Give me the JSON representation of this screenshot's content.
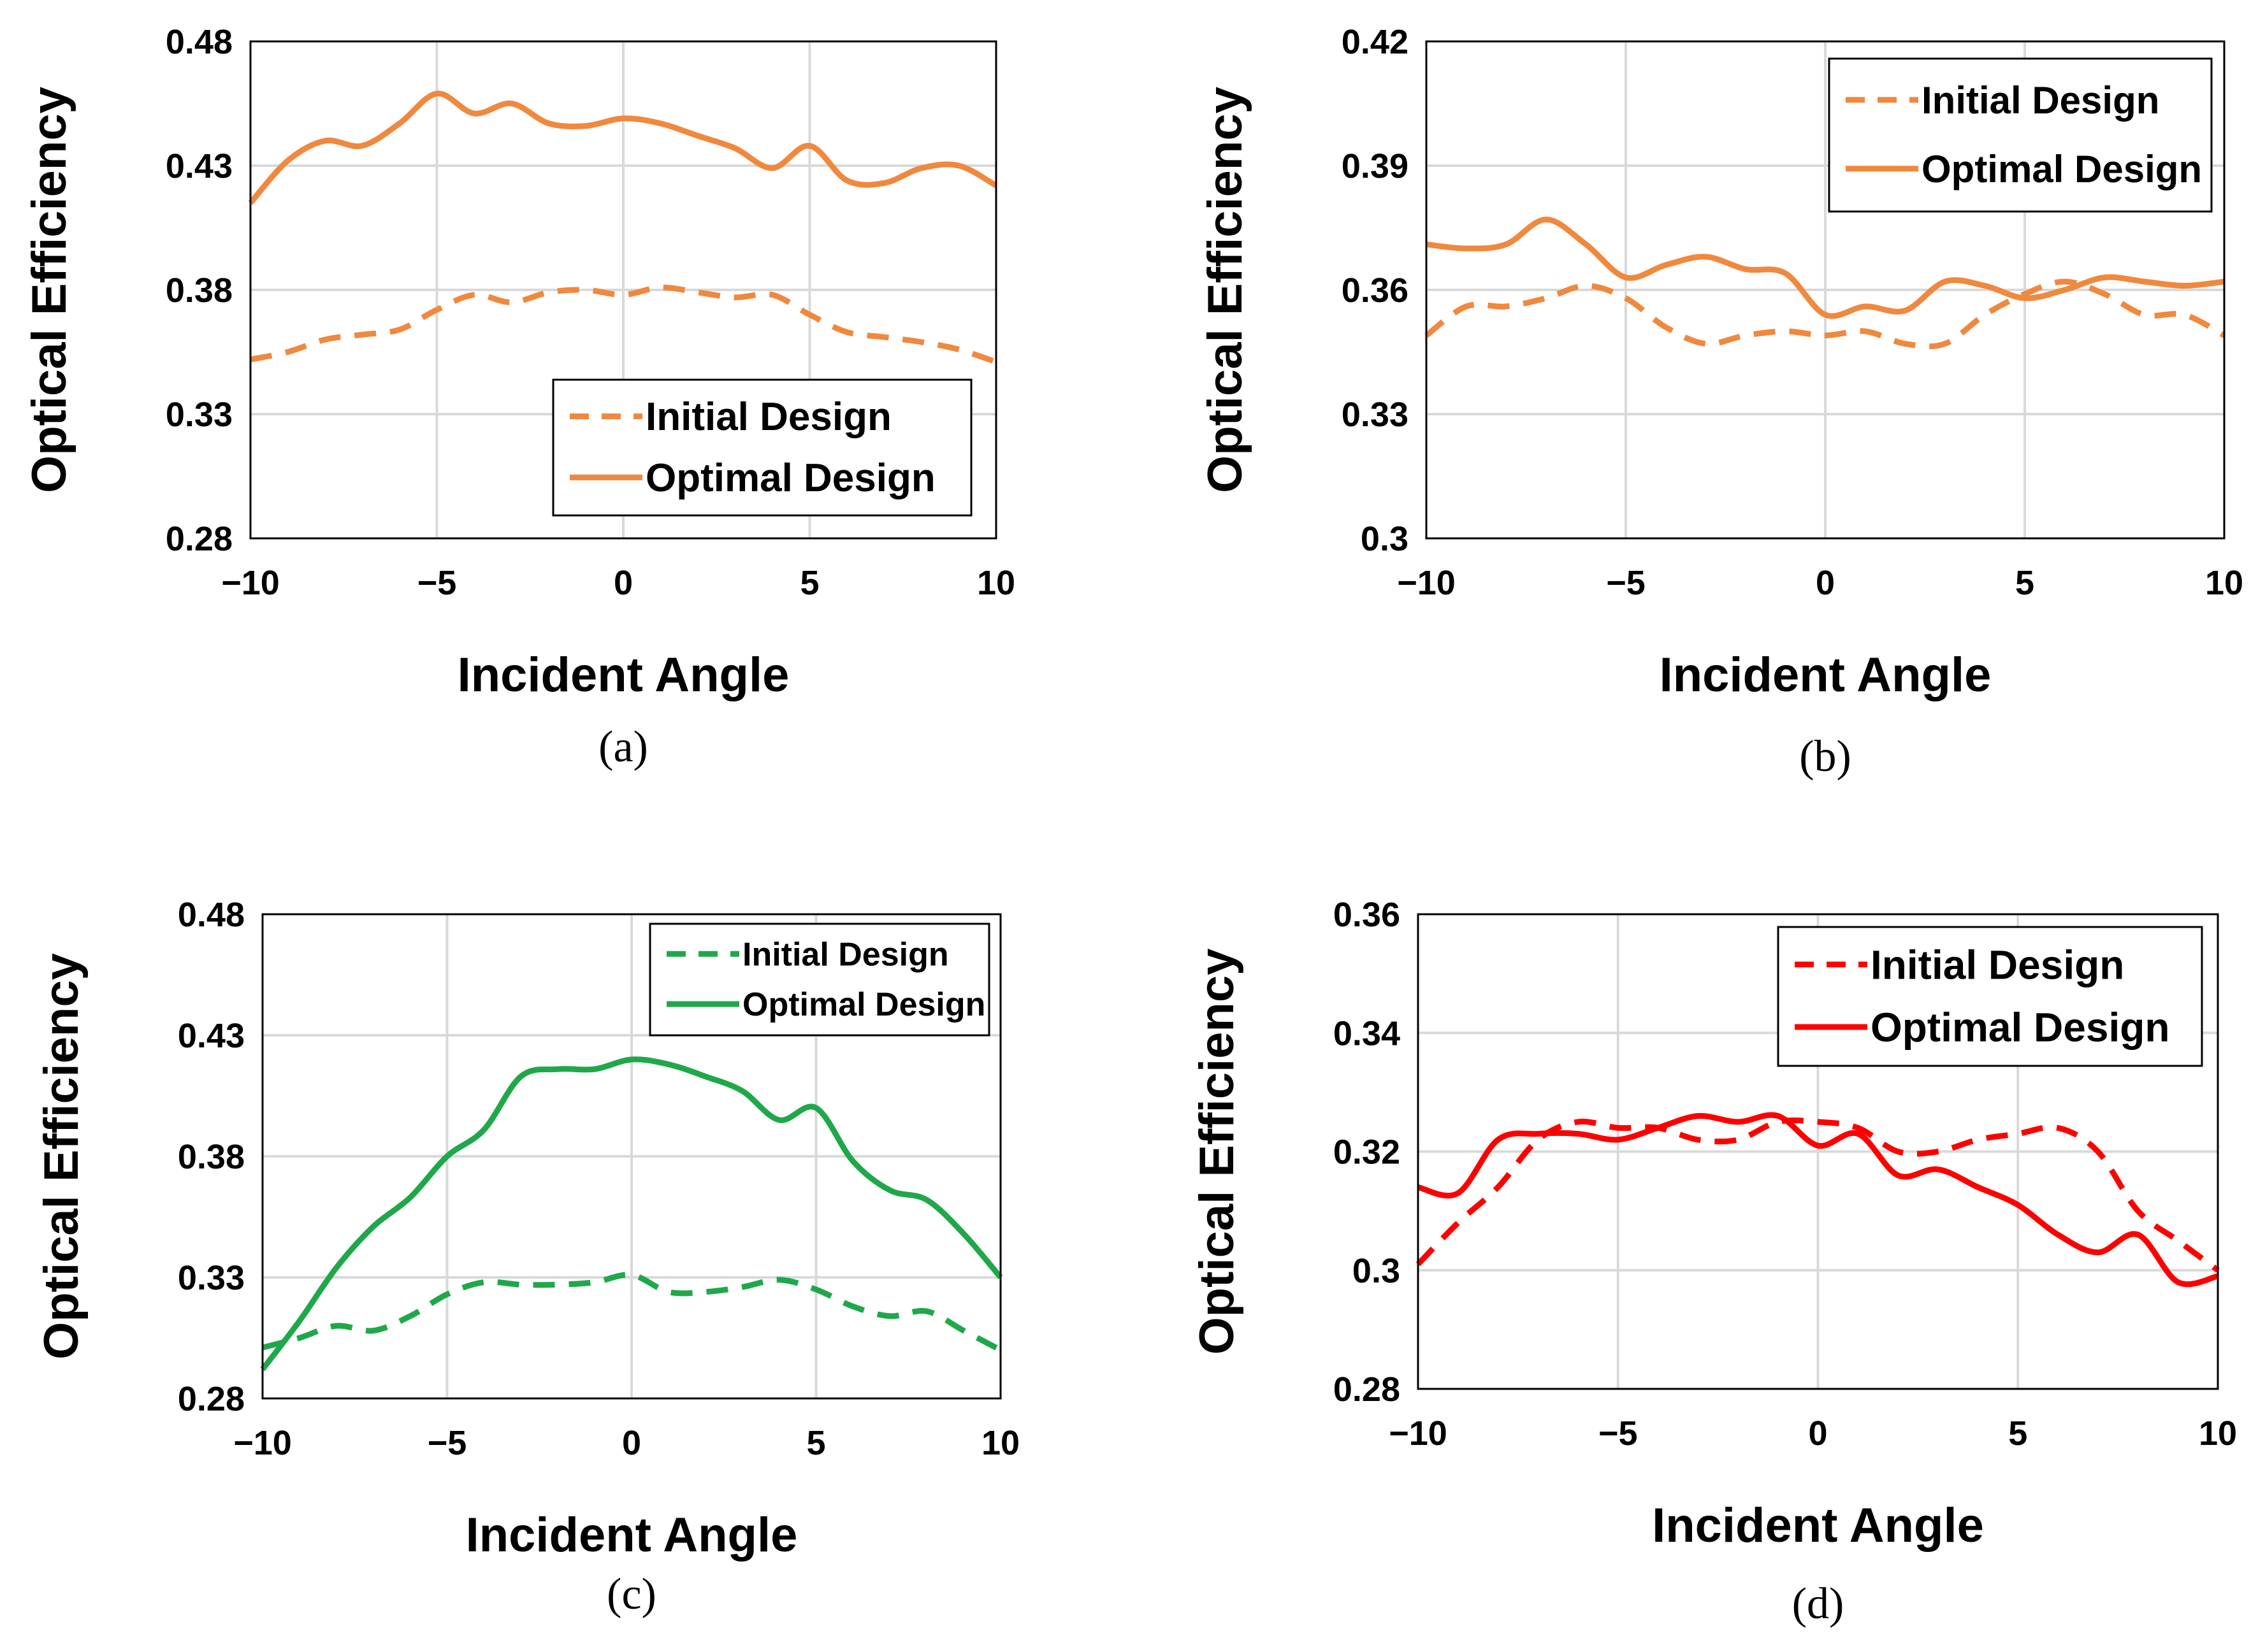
{
  "chart_data": [
    {
      "type": "line",
      "panel": "(a)",
      "xlabel": "Incident Angle",
      "ylabel": "Optical Efficiency",
      "xlim": [
        -10,
        10
      ],
      "ylim": [
        0.28,
        0.48
      ],
      "xticks": [
        "−10",
        "−5",
        "0",
        "5",
        "10"
      ],
      "yticks": [
        "0.28",
        "0.33",
        "0.38",
        "0.43",
        "0.48"
      ],
      "grid": true,
      "legend_position": "bottom-right",
      "color": "#f0883e",
      "series": [
        {
          "name": "Initial Design",
          "style": "dashed",
          "x": [
            -10,
            -9,
            -8,
            -7,
            -6,
            -5,
            -4,
            -3,
            -2,
            -1,
            0,
            1,
            2,
            3,
            4,
            5,
            6,
            7,
            8,
            9,
            10
          ],
          "y": [
            0.352,
            0.355,
            0.36,
            0.362,
            0.364,
            0.372,
            0.378,
            0.375,
            0.379,
            0.38,
            0.378,
            0.381,
            0.379,
            0.377,
            0.378,
            0.37,
            0.363,
            0.361,
            0.359,
            0.356,
            0.351
          ]
        },
        {
          "name": "Optimal Design",
          "style": "solid",
          "x": [
            -10,
            -9,
            -8,
            -7,
            -6,
            -5,
            -4,
            -3,
            -2,
            -1,
            0,
            1,
            2,
            3,
            4,
            5,
            6,
            7,
            8,
            9,
            10
          ],
          "y": [
            0.415,
            0.432,
            0.44,
            0.438,
            0.447,
            0.459,
            0.451,
            0.455,
            0.447,
            0.446,
            0.449,
            0.447,
            0.442,
            0.437,
            0.429,
            0.438,
            0.424,
            0.423,
            0.429,
            0.43,
            0.422
          ]
        }
      ]
    },
    {
      "type": "line",
      "panel": "(b)",
      "xlabel": "Incident Angle",
      "ylabel": "Optical Efficiency",
      "xlim": [
        -10,
        10
      ],
      "ylim": [
        0.3,
        0.42
      ],
      "xticks": [
        "−10",
        "−5",
        "0",
        "5",
        "10"
      ],
      "yticks": [
        "0.3",
        "0.33",
        "0.36",
        "0.39",
        "0.42"
      ],
      "grid": true,
      "legend_position": "top-right",
      "color": "#f0883e",
      "series": [
        {
          "name": "Initial Design",
          "style": "dashed",
          "x": [
            -10,
            -9,
            -8,
            -7,
            -6,
            -5,
            -4,
            -3,
            -2,
            -1,
            0,
            1,
            2,
            3,
            4,
            5,
            6,
            7,
            8,
            9,
            10
          ],
          "y": [
            0.349,
            0.356,
            0.356,
            0.358,
            0.361,
            0.358,
            0.351,
            0.347,
            0.349,
            0.35,
            0.349,
            0.35,
            0.347,
            0.347,
            0.354,
            0.359,
            0.362,
            0.359,
            0.354,
            0.354,
            0.349
          ]
        },
        {
          "name": "Optimal Design",
          "style": "solid",
          "x": [
            -10,
            -9,
            -8,
            -7,
            -6,
            -5,
            -4,
            -3,
            -2,
            -1,
            0,
            1,
            2,
            3,
            4,
            5,
            6,
            7,
            8,
            9,
            10
          ],
          "y": [
            0.371,
            0.37,
            0.371,
            0.377,
            0.371,
            0.363,
            0.366,
            0.368,
            0.365,
            0.364,
            0.354,
            0.356,
            0.355,
            0.362,
            0.361,
            0.358,
            0.36,
            0.363,
            0.362,
            0.361,
            0.362
          ]
        }
      ]
    },
    {
      "type": "line",
      "panel": "(c)",
      "xlabel": "Incident Angle",
      "ylabel": "Optical Efficiency",
      "xlim": [
        -10,
        10
      ],
      "ylim": [
        0.28,
        0.48
      ],
      "xticks": [
        "−10",
        "−5",
        "0",
        "5",
        "10"
      ],
      "yticks": [
        "0.28",
        "0.33",
        "0.38",
        "0.43",
        "0.48"
      ],
      "grid": true,
      "legend_position": "top-right",
      "color": "#1fa84a",
      "series": [
        {
          "name": "Initial Design",
          "style": "dashed",
          "x": [
            -10,
            -9,
            -8,
            -7,
            -6,
            -5,
            -4,
            -3,
            -2,
            -1,
            0,
            1,
            2,
            3,
            4,
            5,
            6,
            7,
            8,
            9,
            10
          ],
          "y": [
            0.301,
            0.305,
            0.31,
            0.308,
            0.314,
            0.323,
            0.328,
            0.327,
            0.327,
            0.328,
            0.331,
            0.324,
            0.324,
            0.326,
            0.329,
            0.325,
            0.318,
            0.314,
            0.316,
            0.308,
            0.3
          ]
        },
        {
          "name": "Optimal Design",
          "style": "solid",
          "x": [
            -10,
            -9,
            -8,
            -7,
            -6,
            -5,
            -4,
            -3,
            -2,
            -1,
            0,
            1,
            2,
            3,
            4,
            5,
            6,
            7,
            8,
            9,
            10
          ],
          "y": [
            0.292,
            0.312,
            0.334,
            0.351,
            0.363,
            0.38,
            0.391,
            0.413,
            0.416,
            0.416,
            0.42,
            0.418,
            0.413,
            0.407,
            0.395,
            0.4,
            0.378,
            0.366,
            0.362,
            0.348,
            0.33
          ]
        }
      ]
    },
    {
      "type": "line",
      "panel": "(d)",
      "xlabel": "Incident Angle",
      "ylabel": "Optical Efficiency",
      "xlim": [
        -10,
        10
      ],
      "ylim": [
        0.28,
        0.36
      ],
      "xticks": [
        "−10",
        "−5",
        "0",
        "5",
        "10"
      ],
      "yticks": [
        "0.28",
        "0.3",
        "0.32",
        "0.34",
        "0.36"
      ],
      "grid": true,
      "legend_position": "top-right",
      "color": "#ff0000",
      "series": [
        {
          "name": "Initial Design",
          "style": "dashed",
          "x": [
            -10,
            -9,
            -8,
            -7,
            -6,
            -5,
            -4,
            -3,
            -2,
            -1,
            0,
            1,
            2,
            3,
            4,
            5,
            6,
            7,
            8,
            9,
            10
          ],
          "y": [
            0.301,
            0.308,
            0.314,
            0.322,
            0.325,
            0.324,
            0.324,
            0.322,
            0.322,
            0.325,
            0.325,
            0.324,
            0.32,
            0.32,
            0.322,
            0.323,
            0.324,
            0.32,
            0.31,
            0.305,
            0.3
          ]
        },
        {
          "name": "Optimal Design",
          "style": "solid",
          "x": [
            -10,
            -9,
            -8,
            -7,
            -6,
            -5,
            -4,
            -3,
            -2,
            -1,
            0,
            1,
            2,
            3,
            4,
            5,
            6,
            7,
            8,
            9,
            10
          ],
          "y": [
            0.314,
            0.313,
            0.322,
            0.323,
            0.323,
            0.322,
            0.324,
            0.326,
            0.325,
            0.326,
            0.321,
            0.323,
            0.316,
            0.317,
            0.314,
            0.311,
            0.306,
            0.303,
            0.306,
            0.298,
            0.299
          ]
        }
      ]
    }
  ]
}
